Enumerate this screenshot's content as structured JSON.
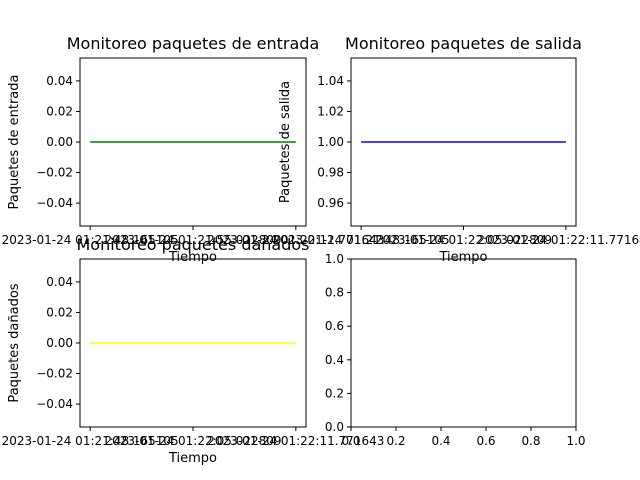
{
  "chart_data": [
    {
      "type": "line",
      "title": "Monitoreo paquetes de entrada",
      "xlabel": "Tiempo",
      "ylabel": "Paquetes de entrada",
      "x_ticks": [
        "2023-01-24 01:21:48.165105",
        "2023-01-24 01:21:55.022809",
        "2023-01-24 01:22:11.771643"
      ],
      "y_ticks": [
        "−0.04",
        "−0.02",
        "0.00",
        "0.02",
        "0.04"
      ],
      "ylim": [
        -0.055,
        0.055
      ],
      "series": [
        {
          "color": "#008000",
          "x": [
            0,
            1
          ],
          "values": [
            0,
            0
          ]
        }
      ]
    },
    {
      "type": "line",
      "title": "Monitoreo paquetes de salida",
      "xlabel": "Tiempo",
      "ylabel": "Paquetes de salida",
      "x_ticks": [
        "2023-01-24 01:21:48.165105",
        "2023-01-24 01:22:05.022809",
        "2023-01-24 01:22:11.771643"
      ],
      "y_ticks": [
        "0.96",
        "0.98",
        "1.00",
        "1.02",
        "1.04"
      ],
      "ylim": [
        0.945,
        1.055
      ],
      "series": [
        {
          "color": "#0000ff",
          "x": [
            0,
            1
          ],
          "values": [
            1,
            1
          ]
        }
      ]
    },
    {
      "type": "line",
      "title": "Monitoreo paquetes dañados",
      "xlabel": "Tiempo",
      "ylabel": "Paquetes dañados",
      "x_ticks": [
        "2023-01-24 01:21:48.165105",
        "2023-01-24 01:22:05.022809",
        "2023-01-24 01:22:11.771643"
      ],
      "y_ticks": [
        "−0.04",
        "−0.02",
        "0.00",
        "0.02",
        "0.04"
      ],
      "ylim": [
        -0.055,
        0.055
      ],
      "series": [
        {
          "color": "#ffff00",
          "x": [
            0,
            1
          ],
          "values": [
            0,
            0
          ]
        }
      ]
    },
    {
      "type": "line",
      "title": "",
      "xlabel": "",
      "ylabel": "",
      "x_ticks": [
        "0.0",
        "0.2",
        "0.4",
        "0.6",
        "0.8",
        "1.0"
      ],
      "y_ticks": [
        "0.0",
        "0.2",
        "0.4",
        "0.6",
        "0.8",
        "1.0"
      ],
      "xlim": [
        0,
        1
      ],
      "ylim": [
        0,
        1
      ],
      "series": []
    }
  ]
}
